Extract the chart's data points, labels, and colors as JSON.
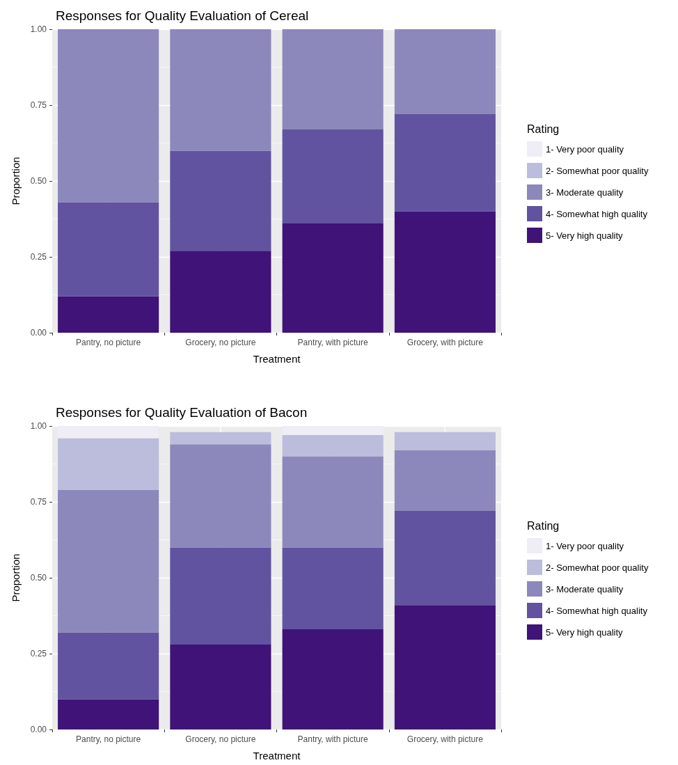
{
  "chart_data": [
    {
      "type": "bar",
      "title": "Responses for Quality Evaluation of Cereal",
      "xlabel": "Treatment",
      "ylabel": "Proportion",
      "legend_title": "Rating",
      "legend": "right",
      "stacked": true,
      "grid": true,
      "categories": [
        "Pantry, no picture",
        "Grocery, no picture",
        "Pantry, with picture",
        "Grocery, with picture"
      ],
      "ylim": [
        0,
        1
      ],
      "yticks": [
        {
          "value": 0,
          "label": "0.00"
        },
        {
          "value": 0.25,
          "label": "0.25"
        },
        {
          "value": 0.5,
          "label": "0.50"
        },
        {
          "value": 0.75,
          "label": "0.75"
        },
        {
          "value": 1,
          "label": "1.00"
        }
      ],
      "series": [
        {
          "name": "5- Very high quality",
          "color": "#3f1377",
          "values": [
            0.12,
            0.27,
            0.36,
            0.4
          ]
        },
        {
          "name": "4- Somewhat high quality",
          "color": "#6153a0",
          "values": [
            0.31,
            0.33,
            0.31,
            0.32
          ]
        },
        {
          "name": "3- Moderate quality",
          "color": "#8c88bc",
          "values": [
            0.57,
            0.4,
            0.33,
            0.28
          ]
        },
        {
          "name": "2- Somewhat poor quality",
          "color": "#bcbddc",
          "values": [
            0,
            0,
            0,
            0
          ]
        },
        {
          "name": "1- Very poor quality",
          "color": "#efedf5",
          "values": [
            0,
            0,
            0,
            0
          ]
        }
      ]
    },
    {
      "type": "bar",
      "title": "Responses for Quality Evaluation of Bacon",
      "xlabel": "Treatment",
      "ylabel": "Proportion",
      "legend_title": "Rating",
      "legend": "right",
      "stacked": true,
      "grid": true,
      "categories": [
        "Pantry, no picture",
        "Grocery, no picture",
        "Pantry, with picture",
        "Grocery, with picture"
      ],
      "ylim": [
        0,
        1
      ],
      "yticks": [
        {
          "value": 0,
          "label": "0.00"
        },
        {
          "value": 0.25,
          "label": "0.25"
        },
        {
          "value": 0.5,
          "label": "0.50"
        },
        {
          "value": 0.75,
          "label": "0.75"
        },
        {
          "value": 1,
          "label": "1.00"
        }
      ],
      "series": [
        {
          "name": "5- Very high quality",
          "color": "#3f1377",
          "values": [
            0.1,
            0.28,
            0.33,
            0.41
          ]
        },
        {
          "name": "4- Somewhat high quality",
          "color": "#6153a0",
          "values": [
            0.22,
            0.32,
            0.27,
            0.31
          ]
        },
        {
          "name": "3- Moderate quality",
          "color": "#8c88bc",
          "values": [
            0.47,
            0.34,
            0.3,
            0.2
          ]
        },
        {
          "name": "2- Somewhat poor quality",
          "color": "#bcbddc",
          "values": [
            0.17,
            0.04,
            0.07,
            0.06
          ]
        },
        {
          "name": "1- Very poor quality",
          "color": "#efedf5",
          "values": [
            0.04,
            null,
            0.03,
            null
          ]
        }
      ]
    }
  ]
}
